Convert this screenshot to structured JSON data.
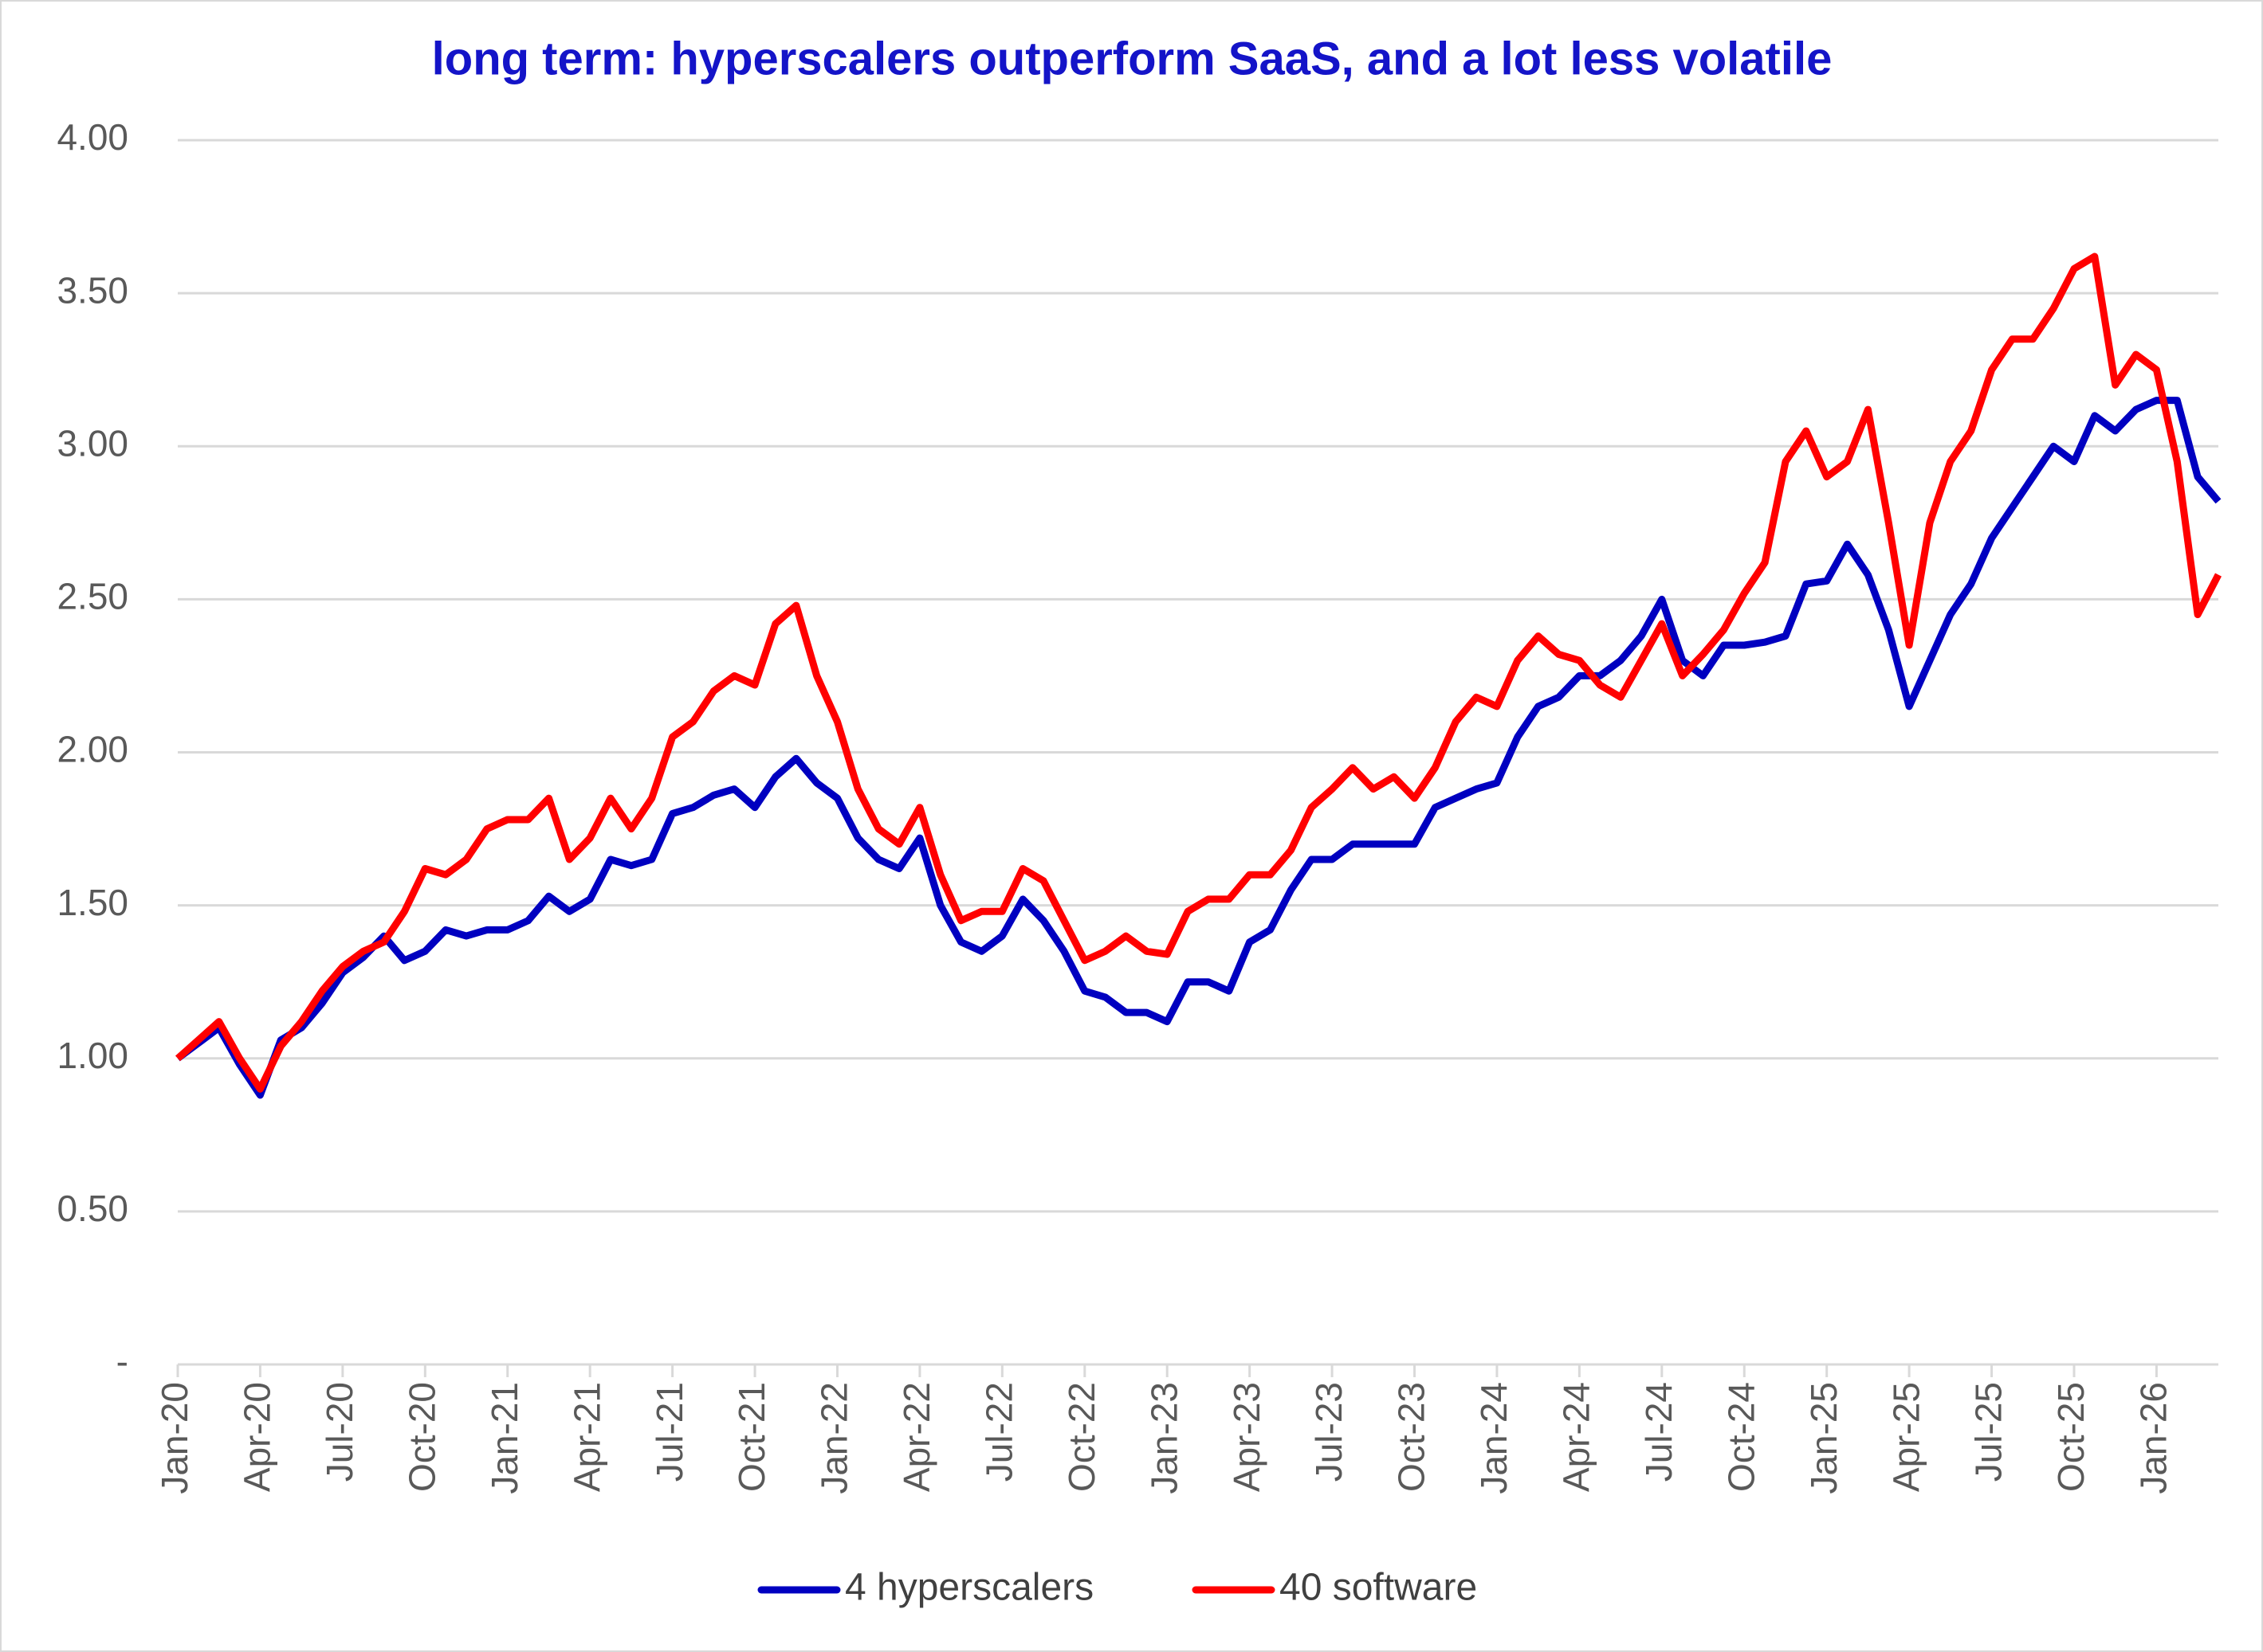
{
  "chart_data": {
    "type": "line",
    "title": "long term: hyperscalers outperform SaaS, and a lot less volatile",
    "categories": [
      "Jan-20",
      null,
      null,
      null,
      "Apr-20",
      null,
      null,
      null,
      "Jul-20",
      null,
      null,
      null,
      "Oct-20",
      null,
      null,
      null,
      "Jan-21",
      null,
      null,
      null,
      "Apr-21",
      null,
      null,
      null,
      "Jul-21",
      null,
      null,
      null,
      "Oct-21",
      null,
      null,
      null,
      "Jan-22",
      null,
      null,
      null,
      "Apr-22",
      null,
      null,
      null,
      "Jul-22",
      null,
      null,
      null,
      "Oct-22",
      null,
      null,
      null,
      "Jan-23",
      null,
      null,
      null,
      "Apr-23",
      null,
      null,
      null,
      "Jul-23",
      null,
      null,
      null,
      "Oct-23",
      null,
      null,
      null,
      "Jan-24",
      null,
      null,
      null,
      "Apr-24",
      null,
      null,
      null,
      "Jul-24",
      null,
      null,
      null,
      "Oct-24",
      null,
      null,
      null,
      "Jan-25",
      null,
      null,
      null,
      "Apr-25",
      null,
      null,
      null,
      "Jul-25",
      null,
      null,
      null,
      "Oct-25",
      null,
      null,
      null,
      "Jan-26",
      null,
      null,
      null
    ],
    "series": [
      {
        "name": "4 hyperscalers",
        "color": "#0000c0",
        "values": [
          1.0,
          1.05,
          1.1,
          0.98,
          0.88,
          1.06,
          1.1,
          1.18,
          1.28,
          1.33,
          1.4,
          1.32,
          1.35,
          1.42,
          1.4,
          1.42,
          1.42,
          1.45,
          1.53,
          1.48,
          1.52,
          1.65,
          1.63,
          1.65,
          1.8,
          1.82,
          1.86,
          1.88,
          1.82,
          1.92,
          1.98,
          1.9,
          1.85,
          1.72,
          1.65,
          1.62,
          1.72,
          1.5,
          1.38,
          1.35,
          1.4,
          1.52,
          1.45,
          1.35,
          1.22,
          1.2,
          1.15,
          1.15,
          1.12,
          1.25,
          1.25,
          1.22,
          1.38,
          1.42,
          1.55,
          1.65,
          1.65,
          1.7,
          1.7,
          1.7,
          1.7,
          1.82,
          1.85,
          1.88,
          1.9,
          2.05,
          2.15,
          2.18,
          2.25,
          2.25,
          2.3,
          2.38,
          2.5,
          2.3,
          2.25,
          2.35,
          2.35,
          2.36,
          2.38,
          2.55,
          2.56,
          2.68,
          2.58,
          2.4,
          2.15,
          2.3,
          2.45,
          2.55,
          2.7,
          2.8,
          2.9,
          3.0,
          2.95,
          3.1,
          3.05,
          3.12,
          3.15,
          3.15,
          2.9,
          2.82
        ]
      },
      {
        "name": "40 software",
        "color": "#ff0000",
        "values": [
          1.0,
          1.06,
          1.12,
          1.0,
          0.9,
          1.04,
          1.12,
          1.22,
          1.3,
          1.35,
          1.38,
          1.48,
          1.62,
          1.6,
          1.65,
          1.75,
          1.78,
          1.78,
          1.85,
          1.65,
          1.72,
          1.85,
          1.75,
          1.85,
          2.05,
          2.1,
          2.2,
          2.25,
          2.22,
          2.42,
          2.48,
          2.25,
          2.1,
          1.88,
          1.75,
          1.7,
          1.82,
          1.6,
          1.45,
          1.48,
          1.48,
          1.62,
          1.58,
          1.45,
          1.32,
          1.35,
          1.4,
          1.35,
          1.34,
          1.48,
          1.52,
          1.52,
          1.6,
          1.6,
          1.68,
          1.82,
          1.88,
          1.95,
          1.88,
          1.92,
          1.85,
          1.95,
          2.1,
          2.18,
          2.15,
          2.3,
          2.38,
          2.32,
          2.3,
          2.22,
          2.18,
          2.3,
          2.42,
          2.25,
          2.32,
          2.4,
          2.52,
          2.62,
          2.95,
          3.05,
          2.9,
          2.95,
          3.12,
          2.75,
          2.35,
          2.75,
          2.95,
          3.05,
          3.25,
          3.35,
          3.35,
          3.45,
          3.58,
          3.62,
          3.2,
          3.3,
          3.25,
          2.95,
          2.45,
          2.58
        ]
      }
    ],
    "ylim": [
      0,
      4
    ],
    "yticks": [
      {
        "value": 0,
        "label": "-"
      },
      {
        "value": 0.5,
        "label": "0.50"
      },
      {
        "value": 1,
        "label": "1.00"
      },
      {
        "value": 1.5,
        "label": "1.50"
      },
      {
        "value": 2,
        "label": "2.00"
      },
      {
        "value": 2.5,
        "label": "2.50"
      },
      {
        "value": 3,
        "label": "3.00"
      },
      {
        "value": 3.5,
        "label": "3.50"
      },
      {
        "value": 4,
        "label": "4.00"
      }
    ],
    "grid": true,
    "legend": "bottom"
  }
}
